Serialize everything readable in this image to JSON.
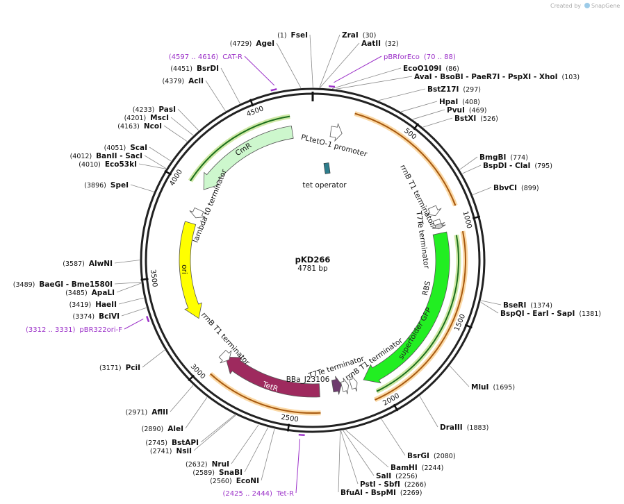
{
  "watermark": {
    "prefix": "Created by",
    "brand": "SnapGene"
  },
  "map": {
    "name": "pKD266",
    "length": "4781 bp",
    "ticks": [
      500,
      1000,
      1500,
      2000,
      2500,
      3000,
      3500,
      4000,
      4500
    ]
  },
  "sites": [
    {
      "name": "FseI",
      "position": "(1)"
    },
    {
      "name": "ZraI",
      "position": "(30)"
    },
    {
      "name": "AatII",
      "position": "(32)"
    },
    {
      "name": "AgeI",
      "position": "(4729)"
    },
    {
      "name": "EcoO109I",
      "position": "(86)"
    },
    {
      "name": "AvaI - BsoBI - PaeR7I - PspXI - XhoI",
      "position": "(103)"
    },
    {
      "name": "BstZ17I",
      "position": "(297)"
    },
    {
      "name": "HpaI",
      "position": "(408)"
    },
    {
      "name": "PvuI",
      "position": "(469)"
    },
    {
      "name": "BstXI",
      "position": "(526)"
    },
    {
      "name": "BmgBI",
      "position": "(774)"
    },
    {
      "name": "BspDI - ClaI",
      "position": "(795)"
    },
    {
      "name": "BbvCI",
      "position": "(899)"
    },
    {
      "name": "BseRI",
      "position": "(1374)"
    },
    {
      "name": "BspQI - EarI - SapI",
      "position": "(1381)"
    },
    {
      "name": "MluI",
      "position": "(1695)"
    },
    {
      "name": "DraIII",
      "position": "(1883)"
    },
    {
      "name": "BsrGI",
      "position": "(2080)"
    },
    {
      "name": "BamHI",
      "position": "(2244)"
    },
    {
      "name": "SalI",
      "position": "(2256)"
    },
    {
      "name": "PstI - SbfI",
      "position": "(2266)"
    },
    {
      "name": "BfuAI - BspMI",
      "position": "(2269)"
    },
    {
      "name": "BsrDI",
      "position": "(4451)"
    },
    {
      "name": "AclI",
      "position": "(4379)"
    },
    {
      "name": "PasI",
      "position": "(4233)"
    },
    {
      "name": "MscI",
      "position": "(4201)"
    },
    {
      "name": "NcoI",
      "position": "(4163)"
    },
    {
      "name": "ScaI",
      "position": "(4051)"
    },
    {
      "name": "BanII - SacI",
      "position": "(4012)"
    },
    {
      "name": "Eco53kI",
      "position": "(4010)"
    },
    {
      "name": "SpeI",
      "position": "(3896)"
    },
    {
      "name": "AlwNI",
      "position": "(3587)"
    },
    {
      "name": "BaeGI - Bme1580I",
      "position": "(3489)"
    },
    {
      "name": "ApaLI",
      "position": "(3485)"
    },
    {
      "name": "HaeII",
      "position": "(3419)"
    },
    {
      "name": "BciVI",
      "position": "(3374)"
    },
    {
      "name": "PciI",
      "position": "(3171)"
    },
    {
      "name": "AflII",
      "position": "(2971)"
    },
    {
      "name": "AleI",
      "position": "(2890)"
    },
    {
      "name": "BstAPI",
      "position": "(2745)"
    },
    {
      "name": "NsiI",
      "position": "(2741)"
    },
    {
      "name": "NruI",
      "position": "(2632)"
    },
    {
      "name": "SnaBI",
      "position": "(2589)"
    },
    {
      "name": "EcoNI",
      "position": "(2560)"
    }
  ],
  "primers": [
    {
      "name": "CAT-R",
      "range": "(4597 .. 4616)"
    },
    {
      "name": "pBRforEco",
      "range": "(70 .. 88)"
    },
    {
      "name": "pBR322ori-F",
      "range": "(3312 .. 3331)"
    },
    {
      "name": "Tet-R",
      "range": "(2425 .. 2444)"
    }
  ],
  "features": [
    {
      "label": "PLtetO-1 promoter"
    },
    {
      "label": "tet operator"
    },
    {
      "label": "CmR"
    },
    {
      "label": "lambda t0 terminator"
    },
    {
      "label": "ori"
    },
    {
      "label": "rrnB T1 terminator"
    },
    {
      "label": "T7Te terminator"
    },
    {
      "label": "rrnB T1 terminator"
    },
    {
      "label": "TetR"
    },
    {
      "label": "BBa_J23106"
    },
    {
      "label": "T7Te terminator"
    },
    {
      "label": "rrnB T1 terminator"
    },
    {
      "label": "superfolder GFP"
    },
    {
      "label": "RBS"
    }
  ]
}
